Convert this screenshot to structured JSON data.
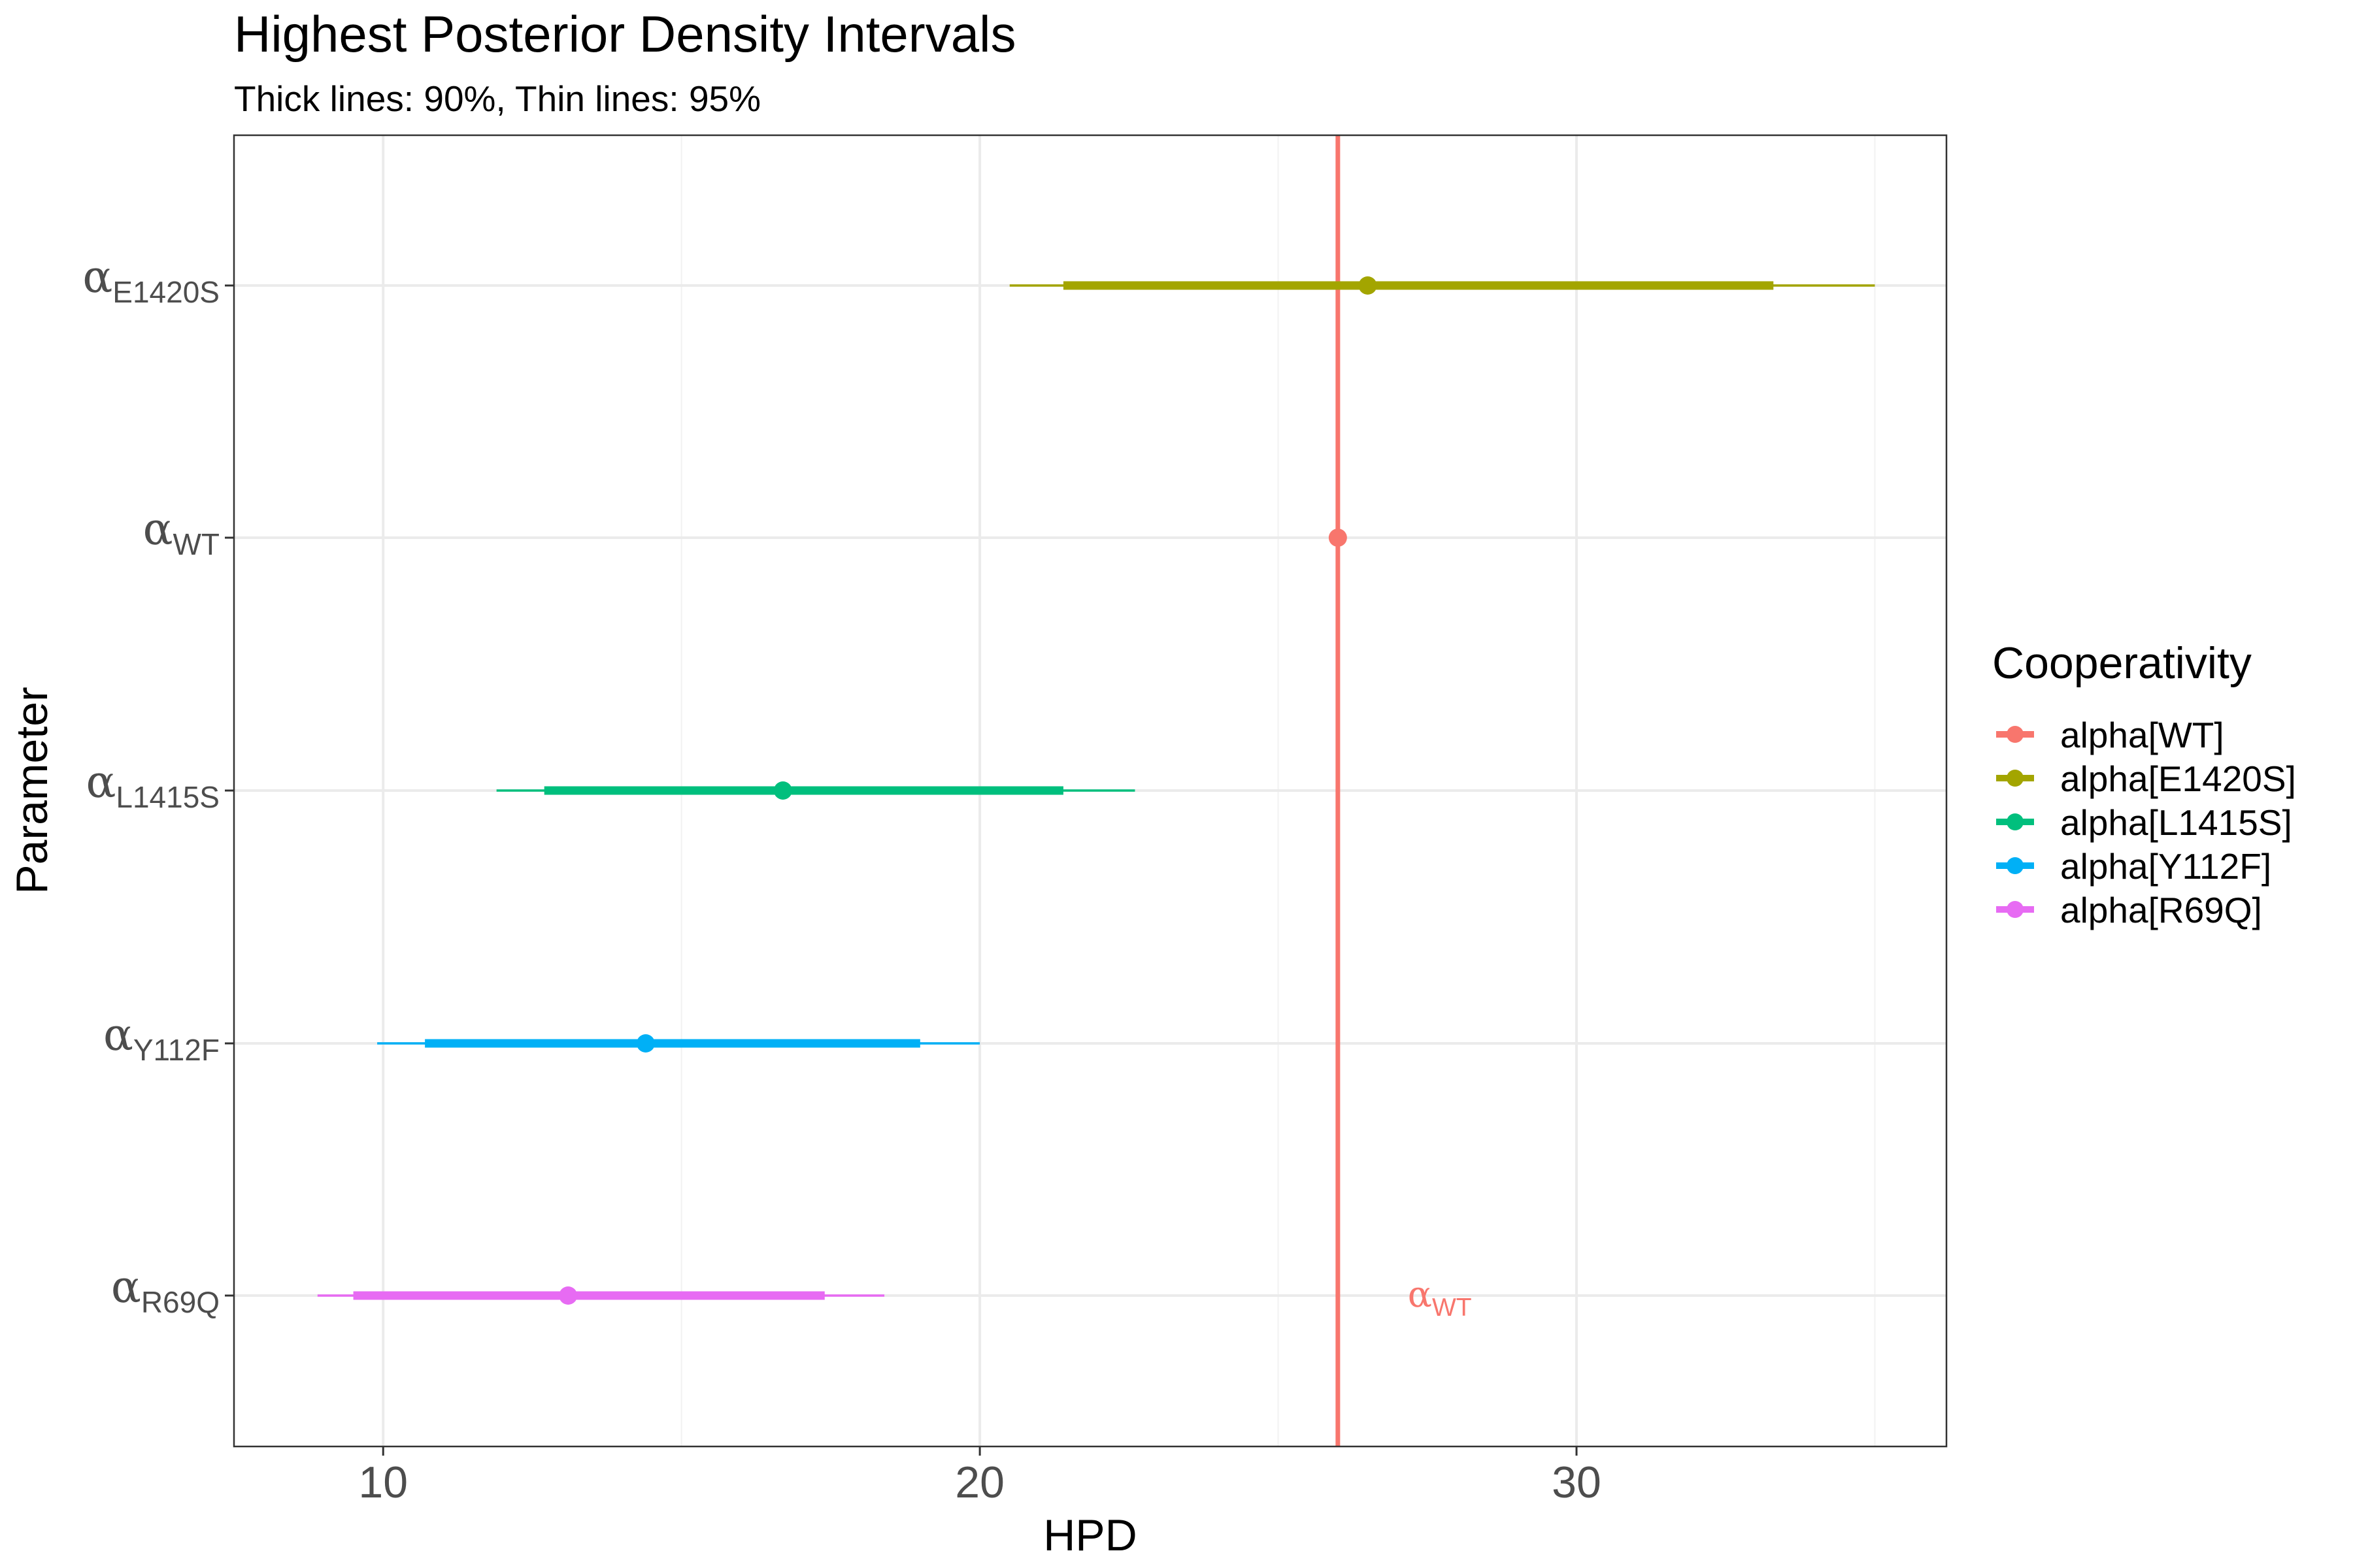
{
  "chart_data": {
    "type": "interval",
    "title": "Highest Posterior Density Intervals",
    "subtitle": "Thick lines: 90%, Thin lines: 95%",
    "xlabel": "HPD",
    "ylabel": "Parameter",
    "xlim": [
      7.5,
      36.2
    ],
    "xticks": [
      10,
      20,
      30
    ],
    "xtick_labels": [
      "10",
      "20",
      "30"
    ],
    "grid": true,
    "legend": {
      "title": "Cooperativity",
      "position": "right",
      "entries": [
        "alpha[WT]",
        "alpha[E1420S]",
        "alpha[L1415S]",
        "alpha[Y112F]",
        "alpha[R69Q]"
      ]
    },
    "y_categories": [
      {
        "greek": "α",
        "sub": "E1420S"
      },
      {
        "greek": "α",
        "sub": "WT"
      },
      {
        "greek": "α",
        "sub": "L1415S"
      },
      {
        "greek": "α",
        "sub": "Y112F"
      },
      {
        "greek": "α",
        "sub": "R69Q"
      }
    ],
    "series": [
      {
        "name": "alpha[WT]",
        "color": "#F8766D",
        "estimate": 26.0,
        "hpd90": [
          26.0,
          26.0
        ],
        "hpd95": [
          26.0,
          26.0
        ]
      },
      {
        "name": "alpha[E1420S]",
        "color": "#A3A500",
        "estimate": 26.5,
        "hpd90": [
          21.4,
          33.3
        ],
        "hpd95": [
          20.5,
          35.0
        ]
      },
      {
        "name": "alpha[L1415S]",
        "color": "#00BF7D",
        "estimate": 16.7,
        "hpd90": [
          12.7,
          21.4
        ],
        "hpd95": [
          11.9,
          22.6
        ]
      },
      {
        "name": "alpha[Y112F]",
        "color": "#00B0F6",
        "estimate": 14.4,
        "hpd90": [
          10.7,
          19.0
        ],
        "hpd95": [
          9.9,
          20.0
        ]
      },
      {
        "name": "alpha[R69Q]",
        "color": "#E76BF3",
        "estimate": 13.1,
        "hpd90": [
          9.5,
          17.4
        ],
        "hpd95": [
          8.9,
          18.4
        ]
      }
    ],
    "reference_line": {
      "x": 26.0,
      "color": "#F8766D"
    },
    "annotation": {
      "greek": "α",
      "sub": "WT",
      "x": 27.5,
      "row": 4,
      "color": "#F8766D"
    }
  }
}
